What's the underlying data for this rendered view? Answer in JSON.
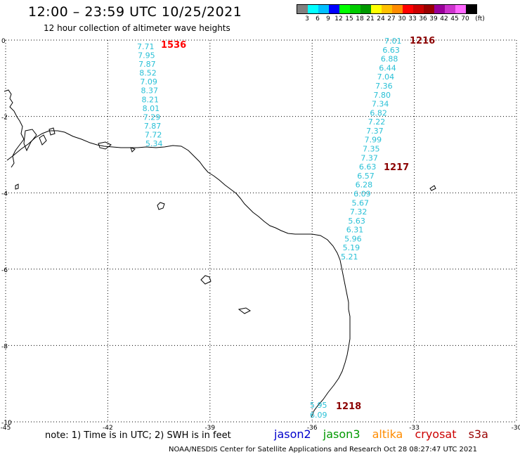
{
  "header": {
    "title": "12:00 – 23:59 UTC 10/25/2021",
    "subtitle": "12 hour collection of altimeter wave heights"
  },
  "scale": {
    "unit": "(ft)",
    "colors": [
      "#808080",
      "#00ffff",
      "#00bfff",
      "#0000ff",
      "#00ff00",
      "#00cc00",
      "#009900",
      "#ffff00",
      "#ffc000",
      "#ff8c00",
      "#ff0000",
      "#cc0000",
      "#990000",
      "#990099",
      "#cc33cc",
      "#ff66ff",
      "#000000"
    ],
    "labels": [
      "3",
      "6",
      "9",
      "12",
      "15",
      "18",
      "21",
      "24",
      "27",
      "30",
      "33",
      "36",
      "39",
      "42",
      "45",
      "70"
    ]
  },
  "axes": {
    "x_labels": [
      "-45",
      "-42",
      "-39",
      "-36",
      "-33",
      "-30"
    ],
    "y_labels": [
      "0",
      "-2",
      "-4",
      "-6",
      "-8",
      "-10"
    ],
    "lon_range": [
      -45,
      -30
    ],
    "lat_range": [
      -10,
      0
    ],
    "grid": true
  },
  "passes": [
    {
      "id": "1536",
      "color": "#ff0000"
    },
    {
      "id": "1216",
      "color": "#8b0000"
    },
    {
      "id": "1217",
      "color": "#8b0000"
    },
    {
      "id": "1218",
      "color": "#8b0000"
    }
  ],
  "track_a": [
    "7.71",
    "7.95",
    "7.87",
    "8.52",
    "7.09",
    "8.37",
    "8.21",
    "8.01",
    "7.29",
    "7.87",
    "7.72",
    "5.34"
  ],
  "track_b": [
    "7.01",
    "6.63",
    "6.88",
    "6.44",
    "7.04",
    "7.36",
    "7.80",
    "7.34",
    "6.82",
    "7.22",
    "7.37",
    "7.99",
    "7.35",
    "7.37",
    "6.63",
    "6.57",
    "6.28",
    "6.09",
    "5.67",
    "7.32",
    "5.63",
    "6.31",
    "5.96",
    "5.19",
    "5.21"
  ],
  "track_c": [
    "5.95",
    "6.09"
  ],
  "note": "note: 1) Time is in UTC; 2) SWH is in feet",
  "legend": [
    {
      "label": "jason2",
      "color": "#0000cc"
    },
    {
      "label": "jason3",
      "color": "#009900"
    },
    {
      "label": "altika",
      "color": "#ff8c00"
    },
    {
      "label": "cryosat",
      "color": "#cc0000"
    },
    {
      "label": "s3a",
      "color": "#990000"
    }
  ],
  "credit": "NOAA/NESDIS Center for Satellite Applications and Research    Oct 28 08:27:47 UTC 2021"
}
